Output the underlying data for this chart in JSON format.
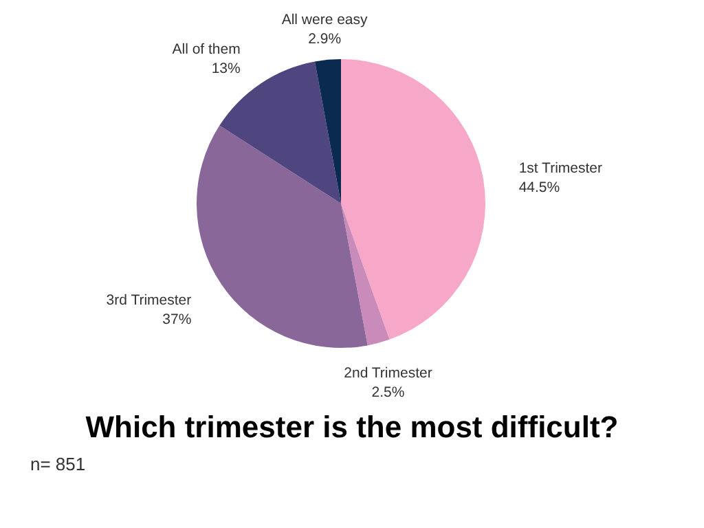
{
  "chart_data": {
    "type": "pie",
    "title": "Which trimester is the most difficult?",
    "categories": [
      "1st Trimester",
      "2nd Trimester",
      "3rd Trimester",
      "All of them",
      "All were easy"
    ],
    "values": [
      44.5,
      2.5,
      37,
      13,
      2.9
    ],
    "value_labels": [
      "44.5%",
      "2.5%",
      "37%",
      "13%",
      "2.9%"
    ],
    "colors": [
      "#f7a8c8",
      "#c98bb9",
      "#8a6799",
      "#4f467f",
      "#0b2a4f"
    ],
    "annotations": [
      "n= 851"
    ],
    "legend": false
  }
}
